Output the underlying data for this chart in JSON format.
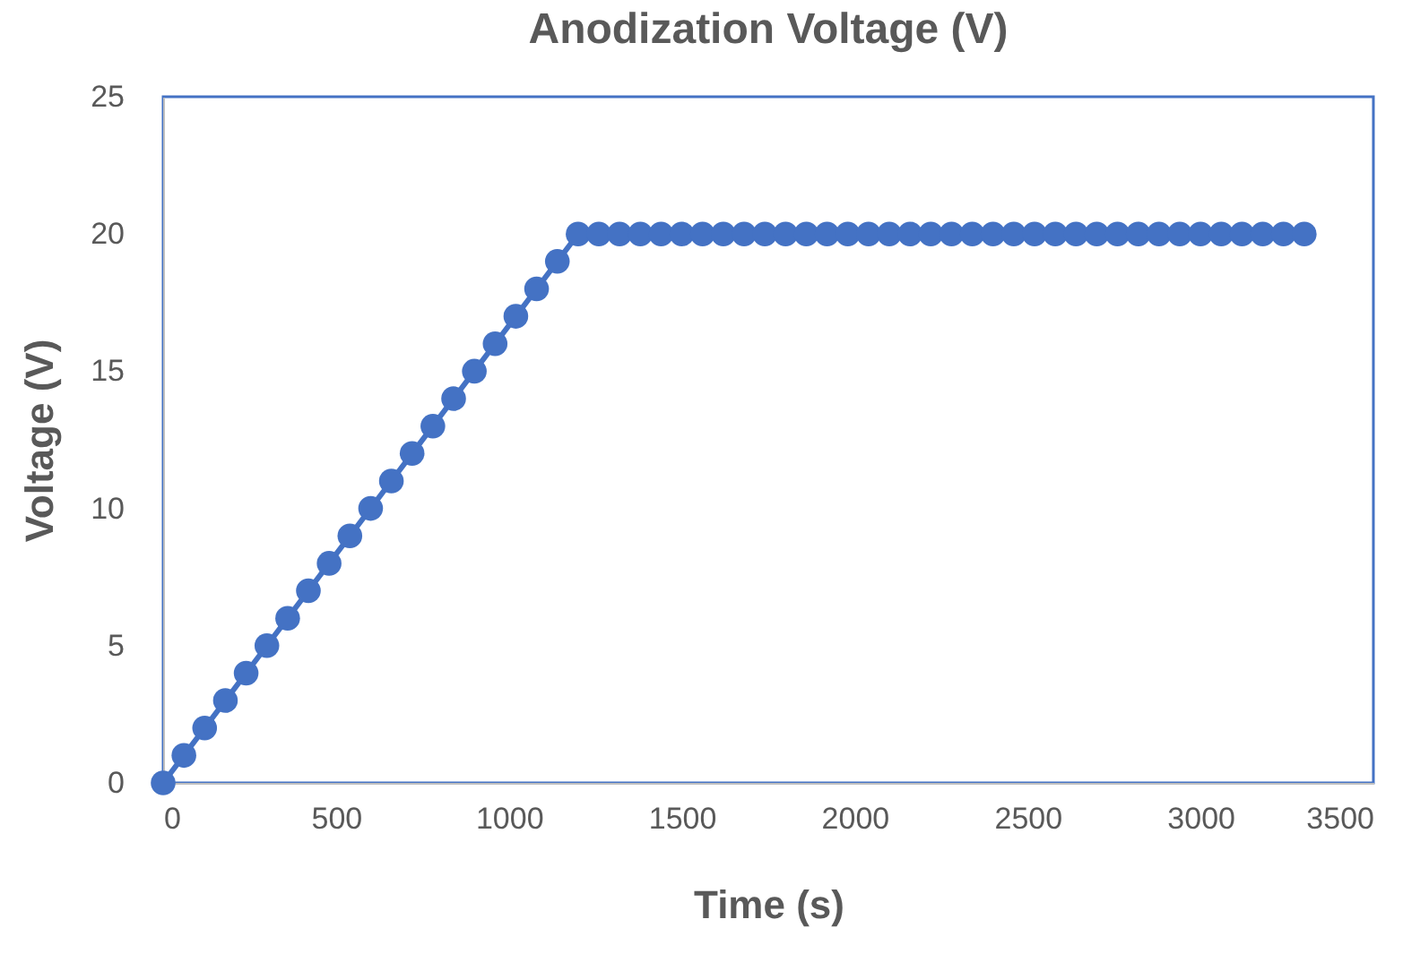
{
  "chart_data": {
    "type": "line",
    "title": "Anodization Voltage (V)",
    "xlabel": "Time (s)",
    "ylabel": "Voltage (V)",
    "x": [
      0,
      60,
      120,
      180,
      240,
      300,
      360,
      420,
      480,
      540,
      600,
      660,
      720,
      780,
      840,
      900,
      960,
      1020,
      1080,
      1140,
      1200,
      1260,
      1320,
      1380,
      1440,
      1500,
      1560,
      1620,
      1680,
      1740,
      1800,
      1860,
      1920,
      1980,
      2040,
      2100,
      2160,
      2220,
      2280,
      2340,
      2400,
      2460,
      2520,
      2580,
      2640,
      2700,
      2760,
      2820,
      2880,
      2940,
      3000,
      3060,
      3120,
      3180,
      3240,
      3300
    ],
    "series": [
      {
        "color": "#4472c4",
        "values": [
          0,
          1,
          2,
          3,
          4,
          5,
          6,
          7,
          8,
          9,
          10,
          11,
          12,
          13,
          14,
          15,
          16,
          17,
          18,
          19,
          20,
          20,
          20,
          20,
          20,
          20,
          20,
          20,
          20,
          20,
          20,
          20,
          20,
          20,
          20,
          20,
          20,
          20,
          20,
          20,
          20,
          20,
          20,
          20,
          20,
          20,
          20,
          20,
          20,
          20,
          20,
          20,
          20,
          20,
          20,
          20
        ]
      }
    ],
    "xlim": [
      0,
      3500
    ],
    "ylim": [
      0,
      25
    ],
    "xticks": [
      0,
      500,
      1000,
      1500,
      2000,
      2500,
      3000,
      3500
    ],
    "yticks": [
      0,
      5,
      10,
      15,
      20,
      25
    ],
    "marker": "circle"
  }
}
